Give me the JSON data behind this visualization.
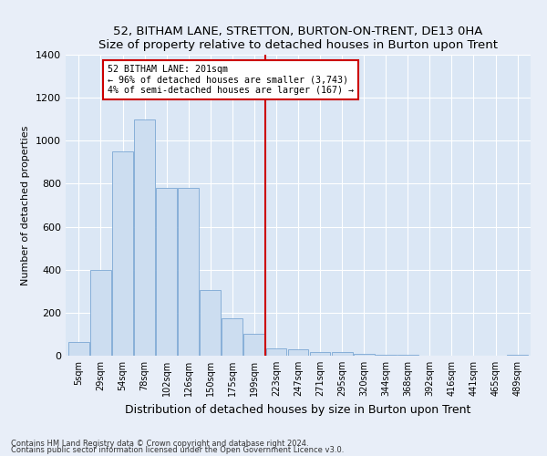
{
  "title": "52, BITHAM LANE, STRETTON, BURTON-ON-TRENT, DE13 0HA",
  "subtitle": "Size of property relative to detached houses in Burton upon Trent",
  "xlabel": "Distribution of detached houses by size in Burton upon Trent",
  "ylabel": "Number of detached properties",
  "categories": [
    "5sqm",
    "29sqm",
    "54sqm",
    "78sqm",
    "102sqm",
    "126sqm",
    "150sqm",
    "175sqm",
    "199sqm",
    "223sqm",
    "247sqm",
    "271sqm",
    "295sqm",
    "320sqm",
    "344sqm",
    "368sqm",
    "392sqm",
    "416sqm",
    "441sqm",
    "465sqm",
    "489sqm"
  ],
  "values": [
    65,
    400,
    950,
    1100,
    780,
    780,
    305,
    175,
    100,
    35,
    30,
    15,
    15,
    10,
    5,
    5,
    0,
    0,
    0,
    0,
    5
  ],
  "bar_color": "#ccddf0",
  "bar_edge_color": "#7ba7d4",
  "property_line_x": 8.5,
  "annotation_text": "52 BITHAM LANE: 201sqm\n← 96% of detached houses are smaller (3,743)\n4% of semi-detached houses are larger (167) →",
  "annotation_box_color": "#ffffff",
  "annotation_box_edge_color": "#cc0000",
  "vline_color": "#cc0000",
  "ylim": [
    0,
    1400
  ],
  "yticks": [
    0,
    200,
    400,
    600,
    800,
    1000,
    1200,
    1400
  ],
  "footer1": "Contains HM Land Registry data © Crown copyright and database right 2024.",
  "footer2": "Contains public sector information licensed under the Open Government Licence v3.0.",
  "background_color": "#e8eef8",
  "plot_background_color": "#dbe7f5"
}
